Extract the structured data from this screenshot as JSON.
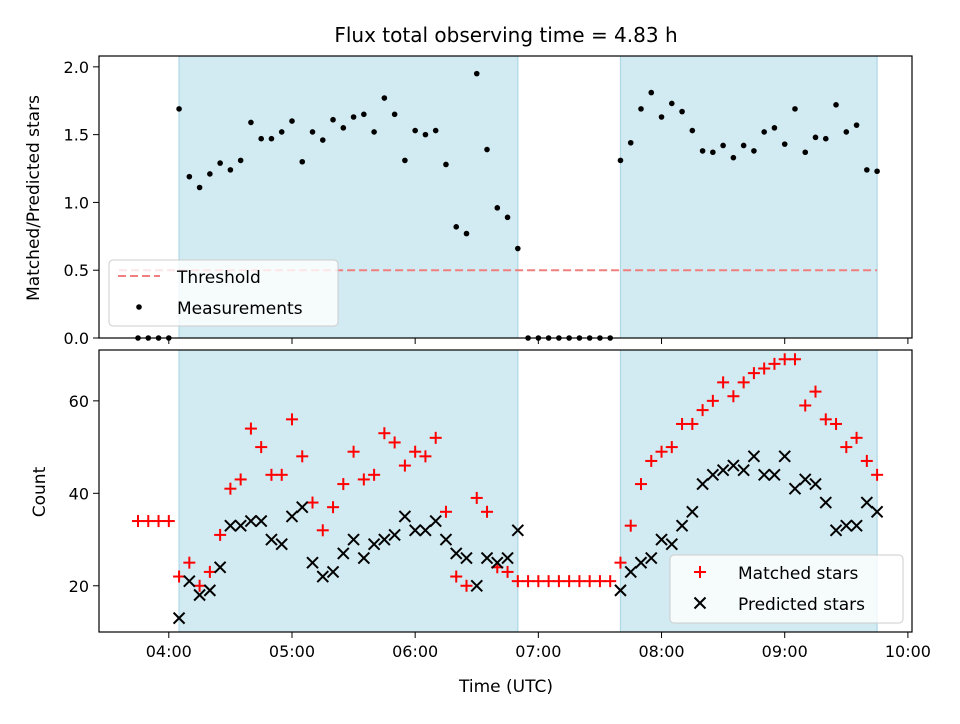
{
  "title": "Flux total observing time = 4.83 h",
  "colors": {
    "shade": "#add8e6",
    "threshold": "#f08080",
    "measurement": "#000000",
    "matched": "#ff0000",
    "predicted": "#000000"
  },
  "chart_data": [
    {
      "type": "scatter",
      "title": "Flux total observing time = 4.83 h",
      "xlabel": "",
      "ylabel": "Matched/Predicted stars",
      "xlim": [
        "03:26",
        "10:02"
      ],
      "ylim": [
        0,
        2.08
      ],
      "yticks": [
        0.0,
        0.5,
        1.0,
        1.5,
        2.0
      ],
      "ytick_labels": [
        "0.0",
        "0.5",
        "1.0",
        "1.5",
        "2.0"
      ],
      "shaded_spans": [
        [
          "04:05",
          "06:50"
        ],
        [
          "07:40",
          "09:45"
        ]
      ],
      "threshold": 0.5,
      "legend": {
        "position": "lower-left",
        "entries": [
          "Threshold",
          "Measurements"
        ]
      },
      "series": [
        {
          "name": "Measurements",
          "x": [
            "03:45",
            "03:50",
            "03:55",
            "04:00",
            "04:05",
            "04:10",
            "04:15",
            "04:20",
            "04:25",
            "04:30",
            "04:35",
            "04:40",
            "04:45",
            "04:50",
            "04:55",
            "05:00",
            "05:05",
            "05:10",
            "05:15",
            "05:20",
            "05:25",
            "05:30",
            "05:35",
            "05:40",
            "05:45",
            "05:50",
            "05:55",
            "06:00",
            "06:05",
            "06:10",
            "06:15",
            "06:20",
            "06:25",
            "06:30",
            "06:35",
            "06:40",
            "06:45",
            "06:50",
            "06:55",
            "07:00",
            "07:05",
            "07:10",
            "07:15",
            "07:20",
            "07:25",
            "07:30",
            "07:35",
            "07:40",
            "07:45",
            "07:50",
            "07:55",
            "08:00",
            "08:05",
            "08:10",
            "08:15",
            "08:20",
            "08:25",
            "08:30",
            "08:35",
            "08:40",
            "08:45",
            "08:50",
            "08:55",
            "09:00",
            "09:05",
            "09:10",
            "09:15",
            "09:20",
            "09:25",
            "09:30",
            "09:35",
            "09:40",
            "09:45"
          ],
          "values": [
            0,
            0,
            0,
            0,
            1.69,
            1.19,
            1.11,
            1.21,
            1.29,
            1.24,
            1.31,
            1.59,
            1.47,
            1.47,
            1.52,
            1.6,
            1.3,
            1.52,
            1.46,
            1.61,
            1.55,
            1.63,
            1.65,
            1.52,
            1.77,
            1.65,
            1.31,
            1.53,
            1.5,
            1.53,
            1.28,
            0.82,
            0.77,
            1.95,
            1.39,
            0.96,
            0.89,
            0.66,
            0,
            0,
            0,
            0,
            0,
            0,
            0,
            0,
            0,
            1.31,
            1.44,
            1.69,
            1.81,
            1.63,
            1.73,
            1.67,
            1.53,
            1.38,
            1.37,
            1.42,
            1.33,
            1.42,
            1.38,
            1.52,
            1.55,
            1.43,
            1.69,
            1.37,
            1.48,
            1.47,
            1.72,
            1.52,
            1.57,
            1.24,
            1.23
          ]
        }
      ]
    },
    {
      "type": "scatter",
      "xlabel": "Time (UTC)",
      "ylabel": "Count",
      "xlim": [
        "03:26",
        "10:02"
      ],
      "ylim": [
        10,
        71
      ],
      "yticks": [
        20,
        40,
        60
      ],
      "xticks": [
        "04:00",
        "05:00",
        "06:00",
        "07:00",
        "08:00",
        "09:00",
        "10:00"
      ],
      "shaded_spans": [
        [
          "04:05",
          "06:50"
        ],
        [
          "07:40",
          "09:45"
        ]
      ],
      "legend": {
        "position": "lower-right",
        "entries": [
          "Matched stars",
          "Predicted stars"
        ]
      },
      "series": [
        {
          "name": "Matched stars",
          "x": [
            "03:45",
            "03:50",
            "03:55",
            "04:00",
            "04:05",
            "04:10",
            "04:15",
            "04:20",
            "04:25",
            "04:30",
            "04:35",
            "04:40",
            "04:45",
            "04:50",
            "04:55",
            "05:00",
            "05:05",
            "05:10",
            "05:15",
            "05:20",
            "05:25",
            "05:30",
            "05:35",
            "05:40",
            "05:45",
            "05:50",
            "05:55",
            "06:00",
            "06:05",
            "06:10",
            "06:15",
            "06:20",
            "06:25",
            "06:30",
            "06:35",
            "06:40",
            "06:45",
            "06:50",
            "06:55",
            "07:00",
            "07:05",
            "07:10",
            "07:15",
            "07:20",
            "07:25",
            "07:30",
            "07:35",
            "07:40",
            "07:45",
            "07:50",
            "07:55",
            "08:00",
            "08:05",
            "08:10",
            "08:15",
            "08:20",
            "08:25",
            "08:30",
            "08:35",
            "08:40",
            "08:45",
            "08:50",
            "08:55",
            "09:00",
            "09:05",
            "09:10",
            "09:15",
            "09:20",
            "09:25",
            "09:30",
            "09:35",
            "09:40",
            "09:45"
          ],
          "values": [
            34,
            34,
            34,
            34,
            22,
            25,
            20,
            23,
            31,
            41,
            43,
            54,
            50,
            44,
            44,
            56,
            48,
            38,
            32,
            37,
            42,
            49,
            43,
            44,
            53,
            51,
            46,
            49,
            48,
            52,
            36,
            22,
            20,
            39,
            36,
            24,
            23,
            21,
            21,
            21,
            21,
            21,
            21,
            21,
            21,
            21,
            21,
            25,
            33,
            42,
            47,
            49,
            50,
            55,
            55,
            58,
            60,
            64,
            61,
            64,
            66,
            67,
            68,
            69,
            69,
            59,
            62,
            56,
            55,
            50,
            52,
            47,
            44
          ]
        },
        {
          "name": "Predicted stars",
          "x": [
            "04:05",
            "04:10",
            "04:15",
            "04:20",
            "04:25",
            "04:30",
            "04:35",
            "04:40",
            "04:45",
            "04:50",
            "04:55",
            "05:00",
            "05:05",
            "05:10",
            "05:15",
            "05:20",
            "05:25",
            "05:30",
            "05:35",
            "05:40",
            "05:45",
            "05:50",
            "05:55",
            "06:00",
            "06:05",
            "06:10",
            "06:15",
            "06:20",
            "06:25",
            "06:30",
            "06:35",
            "06:40",
            "06:45",
            "06:50",
            "07:40",
            "07:45",
            "07:50",
            "07:55",
            "08:00",
            "08:05",
            "08:10",
            "08:15",
            "08:20",
            "08:25",
            "08:30",
            "08:35",
            "08:40",
            "08:45",
            "08:50",
            "08:55",
            "09:00",
            "09:05",
            "09:10",
            "09:15",
            "09:20",
            "09:25",
            "09:30",
            "09:35",
            "09:40",
            "09:45"
          ],
          "values": [
            13,
            21,
            18,
            19,
            24,
            33,
            33,
            34,
            34,
            30,
            29,
            35,
            37,
            25,
            22,
            23,
            27,
            30,
            26,
            29,
            30,
            31,
            35,
            32,
            32,
            34,
            30,
            27,
            26,
            20,
            26,
            25,
            26,
            32,
            19,
            23,
            25,
            26,
            30,
            29,
            33,
            36,
            42,
            44,
            45,
            46,
            45,
            48,
            44,
            44,
            48,
            41,
            43,
            42,
            38,
            32,
            33,
            33,
            38,
            36
          ]
        }
      ]
    }
  ]
}
